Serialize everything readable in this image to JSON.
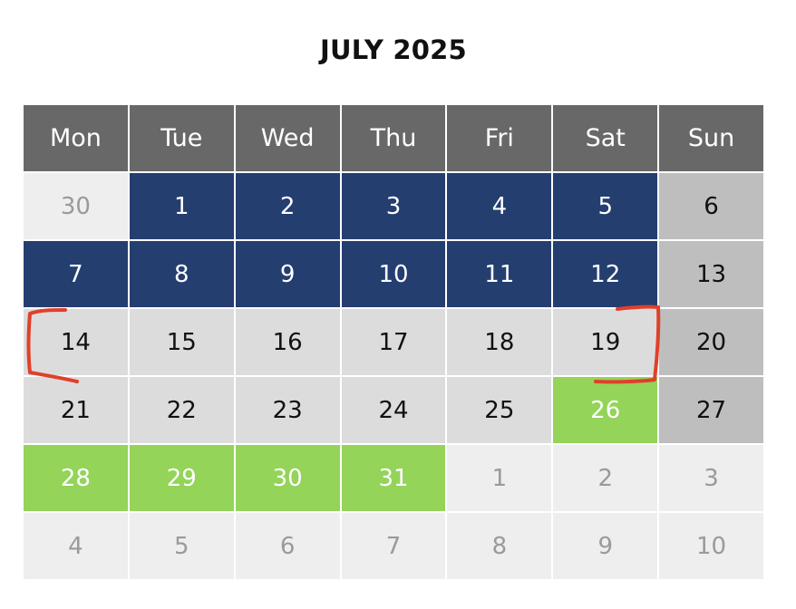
{
  "calendar": {
    "title": "JULY 2025",
    "weekdays": [
      "Mon",
      "Tue",
      "Wed",
      "Thu",
      "Fri",
      "Sat",
      "Sun"
    ],
    "weeks": [
      [
        {
          "day": "30",
          "type": "other"
        },
        {
          "day": "1",
          "type": "blue"
        },
        {
          "day": "2",
          "type": "blue"
        },
        {
          "day": "3",
          "type": "blue"
        },
        {
          "day": "4",
          "type": "blue"
        },
        {
          "day": "5",
          "type": "blue"
        },
        {
          "day": "6",
          "type": "sun"
        }
      ],
      [
        {
          "day": "7",
          "type": "blue"
        },
        {
          "day": "8",
          "type": "blue"
        },
        {
          "day": "9",
          "type": "blue"
        },
        {
          "day": "10",
          "type": "blue"
        },
        {
          "day": "11",
          "type": "blue"
        },
        {
          "day": "12",
          "type": "blue"
        },
        {
          "day": "13",
          "type": "sun"
        }
      ],
      [
        {
          "day": "14",
          "type": "light"
        },
        {
          "day": "15",
          "type": "light"
        },
        {
          "day": "16",
          "type": "light"
        },
        {
          "day": "17",
          "type": "light"
        },
        {
          "day": "18",
          "type": "light"
        },
        {
          "day": "19",
          "type": "light"
        },
        {
          "day": "20",
          "type": "sun"
        }
      ],
      [
        {
          "day": "21",
          "type": "light"
        },
        {
          "day": "22",
          "type": "light"
        },
        {
          "day": "23",
          "type": "light"
        },
        {
          "day": "24",
          "type": "light"
        },
        {
          "day": "25",
          "type": "light"
        },
        {
          "day": "26",
          "type": "green"
        },
        {
          "day": "27",
          "type": "sun"
        }
      ],
      [
        {
          "day": "28",
          "type": "green"
        },
        {
          "day": "29",
          "type": "green"
        },
        {
          "day": "30",
          "type": "green"
        },
        {
          "day": "31",
          "type": "green"
        },
        {
          "day": "1",
          "type": "other"
        },
        {
          "day": "2",
          "type": "other"
        },
        {
          "day": "3",
          "type": "other"
        }
      ],
      [
        {
          "day": "4",
          "type": "other"
        },
        {
          "day": "5",
          "type": "other"
        },
        {
          "day": "6",
          "type": "other"
        },
        {
          "day": "7",
          "type": "other"
        },
        {
          "day": "8",
          "type": "other"
        },
        {
          "day": "9",
          "type": "other"
        },
        {
          "day": "10",
          "type": "other"
        }
      ]
    ],
    "colors": {
      "header": "#686868",
      "other_month": "#eeeeee",
      "booked": "#243e70",
      "weekday": "#dcdcdc",
      "sunday": "#bebebe",
      "highlight": "#93d459",
      "annotation": "#e0402a"
    }
  }
}
